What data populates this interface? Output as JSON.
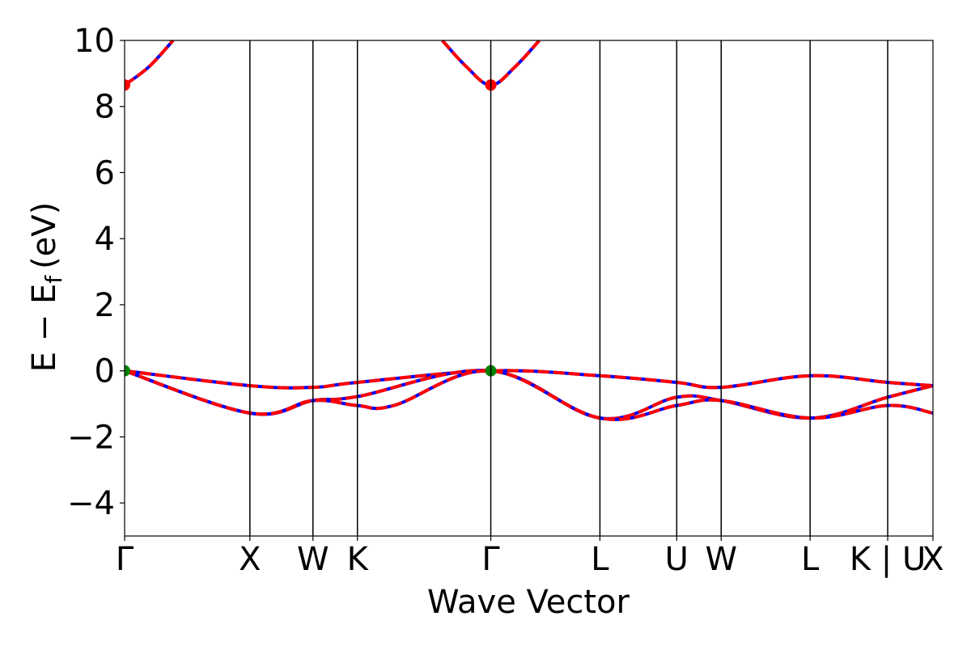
{
  "chart_data": {
    "type": "line",
    "title": "",
    "xlabel": "Wave Vector",
    "ylabel": "E − E",
    "ylabel_subscript": "f",
    "ylabel_unit": "(eV)",
    "ylim": [
      -5,
      10
    ],
    "xlim": [
      0,
      1
    ],
    "yticks": [
      -4,
      -2,
      0,
      2,
      4,
      6,
      8,
      10
    ],
    "ytick_labels": [
      "−4",
      "−2",
      "0",
      "2",
      "4",
      "6",
      "8",
      "10"
    ],
    "kpoints": [
      {
        "label": "Γ",
        "x": 0.0
      },
      {
        "label": "X",
        "x": 0.155
      },
      {
        "label": "W",
        "x": 0.233
      },
      {
        "label": "K",
        "x": 0.288
      },
      {
        "label": "Γ",
        "x": 0.453
      },
      {
        "label": "L",
        "x": 0.588
      },
      {
        "label": "U",
        "x": 0.683
      },
      {
        "label": "W",
        "x": 0.738
      },
      {
        "label": "L",
        "x": 0.848
      },
      {
        "label": "K | U",
        "x": 0.944
      },
      {
        "label": "X",
        "x": 1.0
      }
    ],
    "grid": false,
    "legend": "none",
    "series": [
      {
        "color": "#0000ff",
        "style": "solid",
        "x": [
          0.0,
          0.155,
          0.233,
          0.288,
          0.453,
          0.588,
          0.683,
          0.738,
          0.848,
          0.944,
          1.0
        ],
        "y": [
          0.0,
          -0.45,
          -0.5,
          -0.35,
          0.0,
          -0.15,
          -0.35,
          -0.5,
          -0.15,
          -0.35,
          -0.45
        ]
      },
      {
        "color": "#0000ff",
        "style": "solid",
        "x": [
          0.0,
          0.155,
          0.233,
          0.288,
          0.453,
          0.588,
          0.683,
          0.738,
          0.848,
          0.944,
          1.0
        ],
        "y": [
          0.0,
          -1.28,
          -0.9,
          -0.78,
          0.0,
          -1.43,
          -0.8,
          -0.9,
          -1.43,
          -0.8,
          -0.45
        ]
      },
      {
        "color": "#0000ff",
        "style": "solid",
        "x": [
          0.0,
          0.155,
          0.233,
          0.288,
          0.333,
          0.453,
          0.588,
          0.683,
          0.738,
          0.848,
          0.944,
          1.0
        ],
        "y": [
          0.0,
          -1.28,
          -0.9,
          -1.05,
          -1.05,
          0.0,
          -1.43,
          -1.05,
          -0.9,
          -1.43,
          -1.05,
          -1.28
        ]
      },
      {
        "color": "#0000ff",
        "style": "solid",
        "x": [
          0.0,
          0.03,
          0.06
        ],
        "y": [
          8.65,
          9.2,
          10.0
        ]
      },
      {
        "color": "#0000ff",
        "style": "solid",
        "x": [
          0.393,
          0.423,
          0.453,
          0.483,
          0.513
        ],
        "y": [
          10.0,
          9.2,
          8.65,
          9.2,
          10.0
        ]
      }
    ],
    "markers": [
      {
        "x": 0.0,
        "y": 8.65,
        "color": "#ff0000"
      },
      {
        "x": 0.453,
        "y": 8.65,
        "color": "#ff0000"
      },
      {
        "x": 0.0,
        "y": 0.0,
        "color": "#008000"
      },
      {
        "x": 0.453,
        "y": 0.0,
        "color": "#008000"
      }
    ],
    "overlay_color": "#ff0000",
    "overlay_style": "dashed"
  }
}
